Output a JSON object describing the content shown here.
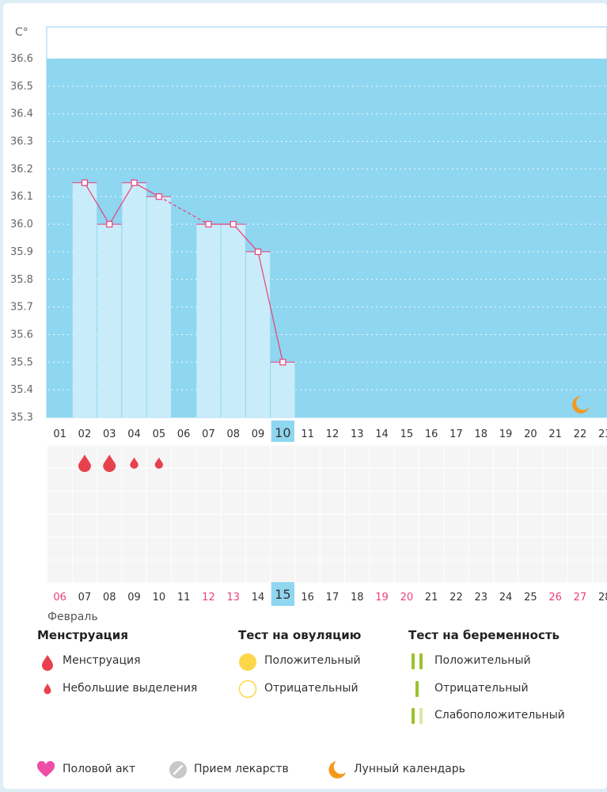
{
  "chart_data": {
    "type": "bar",
    "y_unit_label": "C°",
    "y_ticks": [
      "36.6",
      "36.5",
      "36.4",
      "36.3",
      "36.2",
      "36.1",
      "36.0",
      "35.9",
      "35.8",
      "35.7",
      "35.6",
      "35.5",
      "35.4",
      "35.3"
    ],
    "ylim": [
      35.3,
      36.6
    ],
    "grid": "dotted horizontal",
    "cycle_days": [
      "01",
      "02",
      "03",
      "04",
      "05",
      "06",
      "07",
      "08",
      "09",
      "10",
      "11",
      "12",
      "13",
      "14",
      "15",
      "16",
      "17",
      "18",
      "19",
      "20",
      "21",
      "22",
      "23"
    ],
    "current_cycle_day": "10",
    "calendar_days": [
      "06",
      "07",
      "08",
      "09",
      "10",
      "11",
      "12",
      "13",
      "14",
      "15",
      "16",
      "17",
      "18",
      "19",
      "20",
      "21",
      "22",
      "23",
      "24",
      "25",
      "26",
      "27",
      "28"
    ],
    "weekend_calendar_days": [
      "06",
      "12",
      "13",
      "19",
      "20",
      "26",
      "27"
    ],
    "current_calendar_day": "15",
    "month_label": "Февраль",
    "series": [
      {
        "values": [
          null,
          36.15,
          36.0,
          36.15,
          36.1,
          null,
          36.0,
          36.0,
          35.9,
          35.5
        ],
        "dashed_segment_between_days": [
          "05",
          "07"
        ]
      }
    ],
    "menstruation_marks": [
      {
        "day": "02",
        "type": "menstruation"
      },
      {
        "day": "03",
        "type": "menstruation"
      },
      {
        "day": "04",
        "type": "light"
      },
      {
        "day": "05",
        "type": "light"
      }
    ],
    "moon_marks": [
      {
        "day": "22"
      }
    ],
    "colors": {
      "plot_bg": "#8fd6f0",
      "bar_fill": "#c9ecfa",
      "line": "#e8417a",
      "drop": "#e8414e",
      "highlight": "#8fd6f0",
      "weekend_text": "#e8417a",
      "ovulation_yellow": "#fcd74a",
      "pregnancy_green": "#9cc22a",
      "moon_orange": "#f39a1d",
      "heart_pink": "#ef4ea8",
      "pill_gray": "#c8c8c8"
    }
  },
  "legend": {
    "menstruation": {
      "title": "Менструация",
      "items": [
        {
          "label": "Менструация",
          "icon": "large-drop-icon"
        },
        {
          "label": "Небольшие выделения",
          "icon": "small-drop-icon"
        }
      ]
    },
    "ovulation": {
      "title": "Тест на овуляцию",
      "items": [
        {
          "label": "Положительный",
          "icon": "filled-circle-icon"
        },
        {
          "label": "Отрицательный",
          "icon": "outline-circle-icon"
        }
      ]
    },
    "pregnancy": {
      "title": "Тест на беременность",
      "items": [
        {
          "label": "Положительный",
          "icon": "two-bars-icon"
        },
        {
          "label": "Отрицательный",
          "icon": "one-bar-icon"
        },
        {
          "label": "Слабоположительный",
          "icon": "faint-bars-icon"
        }
      ]
    },
    "bottom": [
      {
        "label": "Половой акт",
        "icon": "heart-icon"
      },
      {
        "label": "Прием лекарств",
        "icon": "pill-icon"
      },
      {
        "label": "Лунный календарь",
        "icon": "moon-icon"
      }
    ]
  }
}
